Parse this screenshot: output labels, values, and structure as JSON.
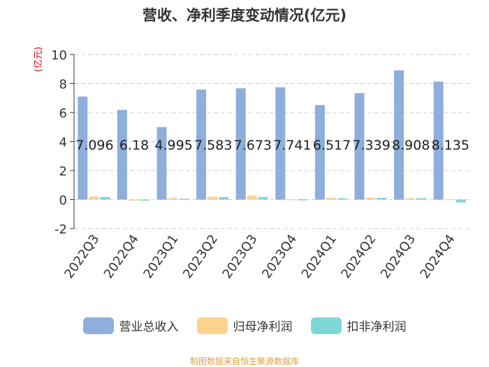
{
  "title": "营收、净利季度变动情况(亿元)",
  "unit_label": "(亿元)",
  "source": "制图数据来自恒生聚源数据库",
  "colors": {
    "revenue": "#8eaedc",
    "net_profit": "#fcd28e",
    "deducted_net_profit": "#7ed8d6",
    "unit": "#e60012",
    "source": "#e0a040"
  },
  "chart_data": {
    "type": "bar",
    "title": "营收、净利季度变动情况(亿元)",
    "categories": [
      "2022Q3",
      "2022Q4",
      "2023Q1",
      "2023Q2",
      "2023Q3",
      "2023Q4",
      "2024Q1",
      "2024Q2",
      "2024Q3",
      "2024Q4"
    ],
    "series": [
      {
        "name": "营业总收入",
        "values": [
          7.096,
          6.18,
          4.995,
          7.583,
          7.673,
          7.741,
          6.517,
          7.339,
          8.908,
          8.135
        ]
      },
      {
        "name": "归母净利润",
        "values": [
          0.22,
          -0.02,
          0.1,
          0.2,
          0.27,
          0.03,
          0.12,
          0.13,
          0.1,
          0.04
        ]
      },
      {
        "name": "扣非净利润",
        "values": [
          0.18,
          -0.03,
          0.06,
          0.17,
          0.18,
          0.02,
          0.09,
          0.12,
          0.1,
          -0.2
        ]
      }
    ],
    "data_labels": [
      "7.096",
      "6.18",
      "4.995",
      "7.583",
      "7.673",
      "7.741",
      "6.517",
      "7.339",
      "8.908",
      "8.135"
    ],
    "ylim": [
      -2,
      10
    ],
    "yticks": [
      "-2",
      "0",
      "2",
      "4",
      "6",
      "8",
      "10"
    ],
    "grid": true,
    "legend_position": "bottom"
  }
}
